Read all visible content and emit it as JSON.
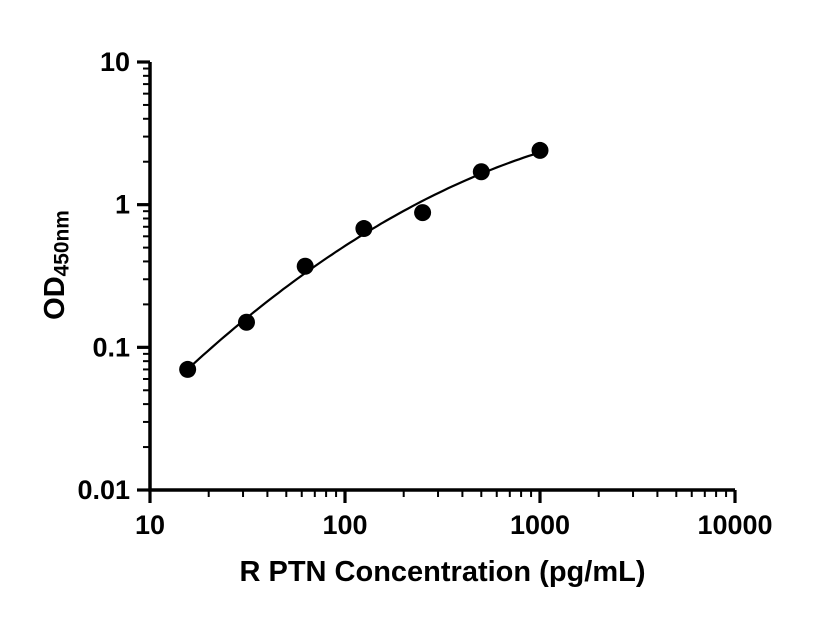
{
  "chart_data": {
    "type": "scatter",
    "title": "",
    "xlabel": "R PTN Concentration (pg/mL)",
    "ylabel": "OD",
    "ylabel_subscript": "450nm",
    "x": [
      15.6,
      31.25,
      62.5,
      125,
      250,
      500,
      1000
    ],
    "y": [
      0.07,
      0.15,
      0.37,
      0.68,
      0.88,
      1.7,
      2.4
    ],
    "fit_curve": "smooth log-log fit through points",
    "xscale": "log",
    "yscale": "log",
    "xlim": [
      10,
      10000
    ],
    "ylim": [
      0.01,
      10
    ],
    "x_tick_labels": [
      "10",
      "100",
      "1000",
      "10000"
    ],
    "y_tick_labels": [
      "10",
      "1",
      "0.1",
      "0.01"
    ],
    "grid": false,
    "legend": "none",
    "marker_color": "#000000",
    "marker_radius_px": 8.5,
    "line_color": "#000000",
    "axis_color": "#000000",
    "background_color": "#ffffff"
  }
}
